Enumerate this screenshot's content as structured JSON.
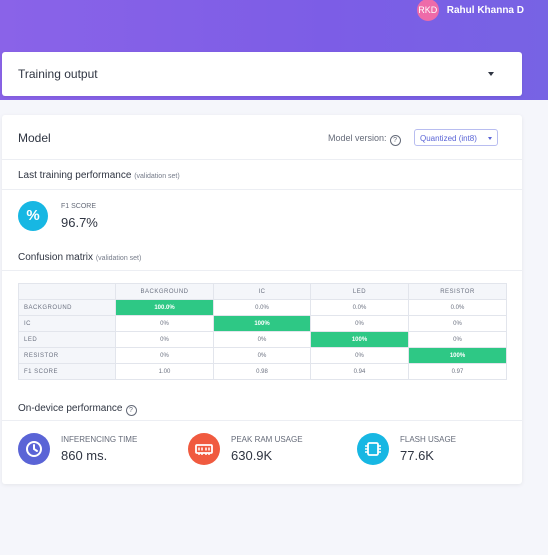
{
  "user": {
    "initials": "RKD",
    "name": "Rahul Khanna D"
  },
  "training_output": {
    "title": "Training output"
  },
  "model": {
    "title": "Model",
    "version_label": "Model version:",
    "version_value": "Quantized (int8)"
  },
  "last_training": {
    "title": "Last training performance",
    "subtitle": "(validation set)",
    "f1_label": "F1 SCORE",
    "f1_value": "96.7%",
    "f1_icon": "%"
  },
  "confusion": {
    "title": "Confusion matrix",
    "subtitle": "(validation set)",
    "columns": [
      "BACKGROUND",
      "IC",
      "LED",
      "RESISTOR"
    ],
    "rows": [
      {
        "label": "BACKGROUND",
        "cells": [
          "100.0%",
          "0.0%",
          "0.0%",
          "0.0%"
        ]
      },
      {
        "label": "IC",
        "cells": [
          "0%",
          "100%",
          "0%",
          "0%"
        ]
      },
      {
        "label": "LED",
        "cells": [
          "0%",
          "0%",
          "100%",
          "0%"
        ]
      },
      {
        "label": "RESISTOR",
        "cells": [
          "0%",
          "0%",
          "0%",
          "100%"
        ]
      }
    ],
    "f1_row": {
      "label": "F1 SCORE",
      "cells": [
        "1.00",
        "0.98",
        "0.94",
        "0.97"
      ]
    }
  },
  "on_device": {
    "title": "On-device performance",
    "metrics": [
      {
        "name": "inferencing-time",
        "label": "INFERENCING TIME",
        "value": "860 ms.",
        "color": "#5a64d6",
        "icon": "clock-icon"
      },
      {
        "name": "peak-ram-usage",
        "label": "PEAK RAM USAGE",
        "value": "630.9K",
        "color": "#f05a3f",
        "icon": "ram-icon"
      },
      {
        "name": "flash-usage",
        "label": "FLASH USAGE",
        "value": "77.6K",
        "color": "#17b7e3",
        "icon": "chip-icon"
      }
    ]
  },
  "colors": {
    "header_gradient_start": "#8a63e8",
    "header_gradient_end": "#7763e4",
    "diagonal": "#2ec885",
    "accent": "#5a64d6"
  }
}
